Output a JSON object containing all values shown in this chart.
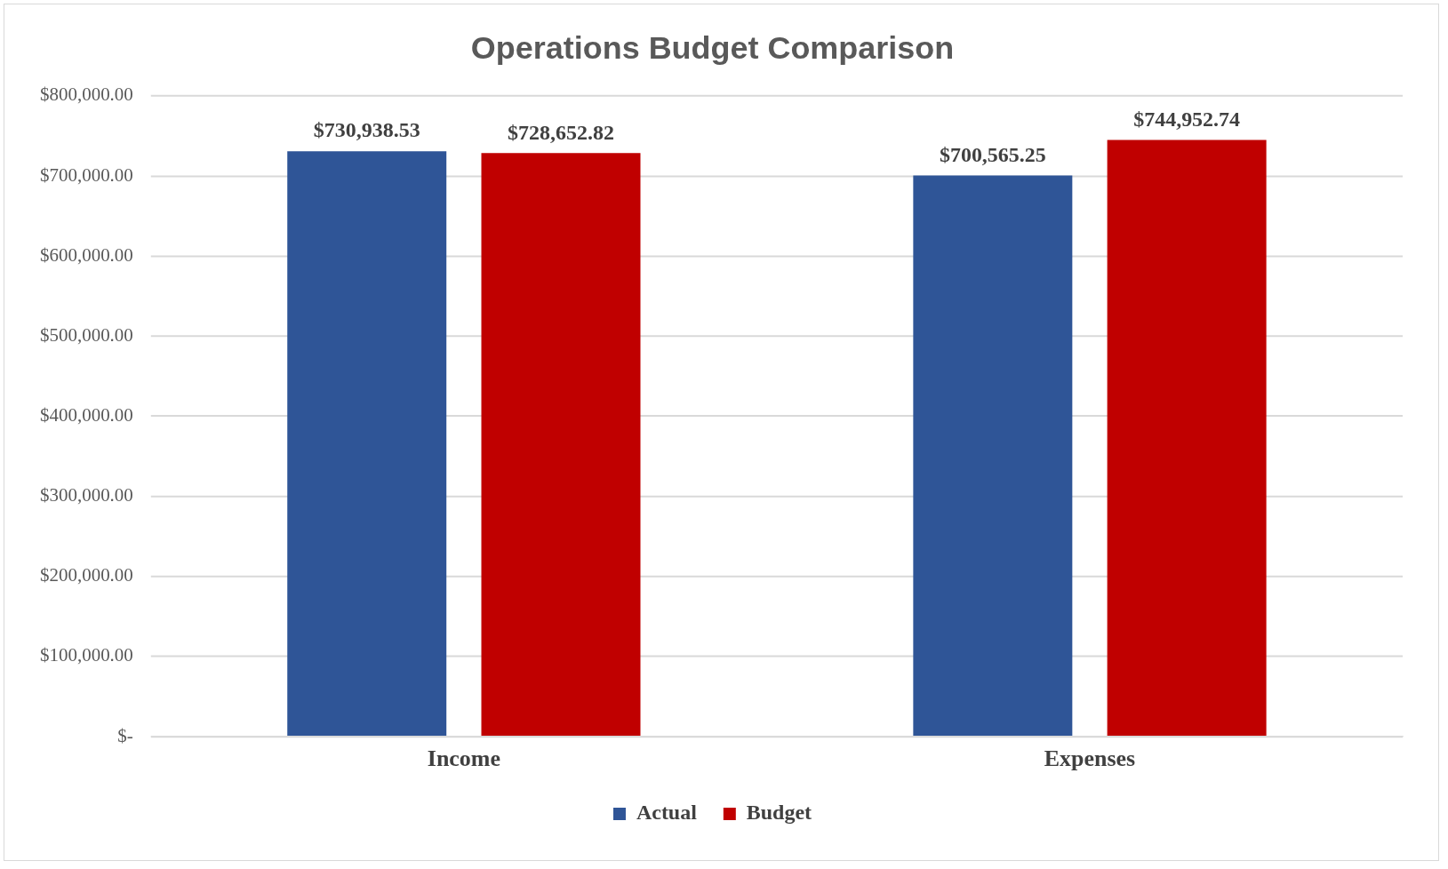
{
  "chart_data": {
    "type": "bar",
    "title": "Operations Budget Comparison",
    "categories": [
      "Income",
      "Expenses"
    ],
    "series": [
      {
        "name": "Actual",
        "color": "#2f5597",
        "values": [
          730938.53,
          700565.25
        ],
        "value_labels": [
          "$730,938.53",
          "$700,565.25"
        ]
      },
      {
        "name": "Budget",
        "color": "#c00000",
        "values": [
          728652.82,
          744952.74
        ],
        "value_labels": [
          "$728,652.82",
          "$744,952.74"
        ]
      }
    ],
    "ylim": [
      0,
      800000
    ],
    "yticks": [
      {
        "value": 0,
        "label": "$-"
      },
      {
        "value": 100000,
        "label": "$100,000.00"
      },
      {
        "value": 200000,
        "label": "$200,000.00"
      },
      {
        "value": 300000,
        "label": "$300,000.00"
      },
      {
        "value": 400000,
        "label": "$400,000.00"
      },
      {
        "value": 500000,
        "label": "$500,000.00"
      },
      {
        "value": 600000,
        "label": "$600,000.00"
      },
      {
        "value": 700000,
        "label": "$700,000.00"
      },
      {
        "value": 800000,
        "label": "$800,000.00"
      }
    ],
    "grid": "y",
    "legend": "bottom"
  }
}
